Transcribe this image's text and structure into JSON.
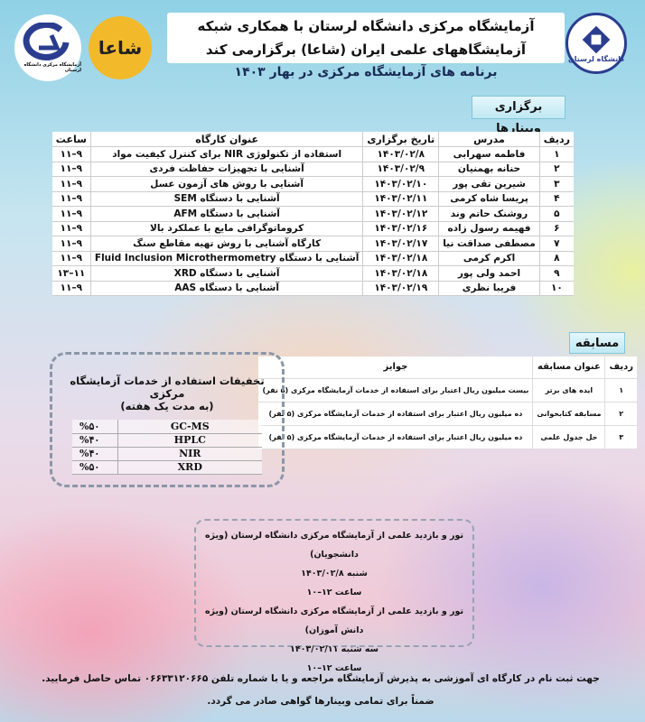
{
  "header": {
    "title_line1": "آزمایشگاه مرکزی دانشگاه لرستان با همکاری شبکه",
    "title_line2": "آزمایشگاههای علمی ایران (شاعا) برگزارمی کند",
    "subtitle": "برنامه های آزمایشگاه مرکزی در بهار ۱۴۰۳"
  },
  "logos": {
    "right": "دانشگاه لرستان",
    "left_blue": "آزمایشگاه مرکزی دانشگاه لرستان",
    "left_yellow": "شاعا"
  },
  "webinars": {
    "section_title": "برگزاری وبینارها",
    "columns": [
      "ردیف",
      "مدرس",
      "تاریخ برگزاری",
      "عنوان کارگاه",
      "ساعت"
    ],
    "rows": [
      [
        "۱",
        "فاطمه سهرابی",
        "۱۴۰۳/۰۲/۸",
        "استفاده از تکنولوژی NIR برای کنترل کیفیت مواد",
        "۹–۱۱"
      ],
      [
        "۲",
        "حنانه بهمنیان",
        "۱۴۰۳/۰۲/۹",
        "آشنایی با تجهیزات حفاظت فردی",
        "۹–۱۱"
      ],
      [
        "۳",
        "شیرین تقی پور",
        "۱۴۰۳/۰۲/۱۰",
        "آشنایی با روش های آزمون عسل",
        "۹–۱۱"
      ],
      [
        "۴",
        "پریسا شاه کرمی",
        "۱۴۰۳/۰۲/۱۱",
        "آشنایی با دستگاه SEM",
        "۹–۱۱"
      ],
      [
        "۵",
        "روشنک حاتم وند",
        "۱۴۰۳/۰۲/۱۲",
        "آشنایی با دستگاه AFM",
        "۹–۱۱"
      ],
      [
        "۶",
        "فهیمه رسول زاده",
        "۱۴۰۳/۰۲/۱۶",
        "کروماتوگرافی مایع با عملکرد بالا",
        "۹–۱۱"
      ],
      [
        "۷",
        "مصطفی صداقت نیا",
        "۱۴۰۳/۰۲/۱۷",
        "کارگاه آشنایی با روش تهیه مقاطع سنگ",
        "۹–۱۱"
      ],
      [
        "۸",
        "اکرم کرمی",
        "۱۴۰۳/۰۲/۱۸",
        "آشنایی با دستگاه Fluid Inclusion Microthermometry",
        "۹–۱۱"
      ],
      [
        "۹",
        "احمد ولی پور",
        "۱۴۰۳/۰۲/۱۸",
        "آشنایی با دستگاه XRD",
        "۱۱–۱۳"
      ],
      [
        "۱۰",
        "فریبا نظری",
        "۱۴۰۳/۰۲/۱۹",
        "آشنایی با دستگاه AAS",
        "۹–۱۱"
      ]
    ]
  },
  "competition": {
    "section_title": "مسابقه",
    "columns": [
      "ردیف",
      "عنوان مسابقه",
      "جوایز"
    ],
    "rows": [
      [
        "۱",
        "ایده های برتر",
        "بیست میلیون ریال اعتبار برای استفاده از خدمات آزمایشگاه مرکزی (۵ نفر)"
      ],
      [
        "۲",
        "مسابقه کتابخوانی",
        "ده میلیون ریال اعتبار برای استفاده از خدمات آزمایشگاه مرکزی (۵ نفر)"
      ],
      [
        "۳",
        "حل جدول علمی",
        "ده میلیون ریال اعتبار برای استفاده از خدمات آزمایشگاه مرکزی (۵ نفر)"
      ]
    ]
  },
  "discounts": {
    "title": "تخفیفات استفاده از خدمات آزمایشگاه مرکزی",
    "subtitle": "(به مدت یک هفته)",
    "rows": [
      [
        "GC-MS",
        "%۵۰"
      ],
      [
        "HPLC",
        "%۴۰"
      ],
      [
        "NIR",
        "%۴۰"
      ],
      [
        "XRD",
        "%۵۰"
      ]
    ]
  },
  "tours": {
    "lines": [
      "تور و بازدید علمی از آزمایشگاه مرکزی دانشگاه لرستان (ویژه دانشجویان)",
      "شنبه ۱۴۰۳/۰۲/۸",
      "ساعت ۱۲–۱۰",
      "تور و بازدید علمی از آزمایشگاه مرکزی دانشگاه لرستان (ویژه دانش آموزان)",
      "سه شنبه ۱۴۰۳/۰۲/۱۱",
      "ساعت ۱۲–۱۰"
    ]
  },
  "footer": {
    "line1": "جهت ثبت نام در کارگاه ای آموزشی به پذیرش آزمایشگاه مراجعه و یا با شماره تلفن ۰۶۶۳۳۱۲۰۶۶۵ تماس حاصل فرمایید.",
    "line2": "ضمناً برای تمامی وبینارها گواهی صادر می گردد."
  },
  "colors": {
    "tag_bg": "#bfe8f3",
    "logo_blue": "#2a3d8f",
    "logo_yellow": "#f2b92b"
  }
}
